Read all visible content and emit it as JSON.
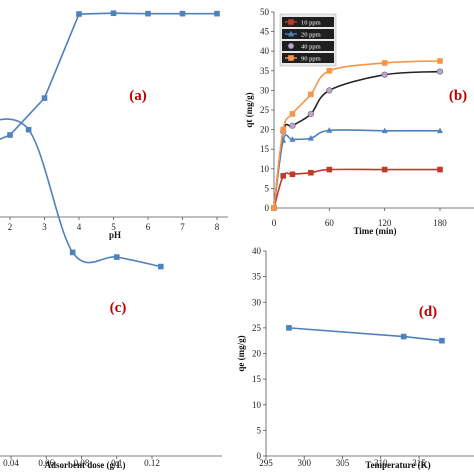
{
  "chart_data": [
    {
      "id": "a",
      "type": "line",
      "panel_label": "(a)",
      "xlabel": "pH",
      "ylabel": "",
      "x_ticks": [
        "2",
        "3",
        "4",
        "5",
        "6",
        "7",
        "8"
      ],
      "xlim": [
        1,
        8
      ],
      "ylim": [
        0,
        100
      ],
      "series": [
        {
          "name": "",
          "color": "#4f81bd",
          "x": [
            1.0,
            2,
            3,
            4,
            5,
            6,
            7,
            8
          ],
          "y": [
            33,
            40,
            58,
            99,
            99.4,
            99.2,
            99.2,
            99.2
          ]
        }
      ]
    },
    {
      "id": "b",
      "type": "line",
      "panel_label": "(b)",
      "xlabel": "Time (min)",
      "ylabel": "qt (mg/g)",
      "x_ticks": [
        "0",
        "60",
        "120",
        "180"
      ],
      "y_ticks": [
        "0",
        "5",
        "10",
        "15",
        "20",
        "25",
        "30",
        "35",
        "40",
        "45",
        "50"
      ],
      "xlim": [
        0,
        230
      ],
      "ylim": [
        0,
        50
      ],
      "legend_position": "top-left",
      "series": [
        {
          "name": "10 ppm",
          "color": "#c0392b",
          "marker": "square",
          "x": [
            0,
            10,
            20,
            40,
            60,
            120,
            180
          ],
          "y": [
            0,
            8.2,
            8.6,
            9.0,
            9.8,
            9.8,
            9.8
          ]
        },
        {
          "name": "20 ppm",
          "color": "#4f81bd",
          "marker": "triangle",
          "x": [
            0,
            10,
            20,
            40,
            60,
            120,
            180
          ],
          "y": [
            0,
            17.3,
            17.5,
            17.8,
            19.8,
            19.7,
            19.7
          ]
        },
        {
          "name": "40 ppm",
          "color": "#222222",
          "marker": "circle",
          "x": [
            0,
            10,
            20,
            40,
            60,
            120,
            180
          ],
          "y": [
            0,
            19.5,
            21,
            24,
            30,
            34,
            34.8
          ]
        },
        {
          "name": "90 ppm",
          "color": "#f79646",
          "marker": "square",
          "x": [
            0,
            10,
            20,
            40,
            60,
            120,
            180
          ],
          "y": [
            0,
            20,
            24,
            29,
            35,
            37,
            37.5
          ]
        }
      ]
    },
    {
      "id": "c",
      "type": "line",
      "panel_label": "(c)",
      "xlabel": "Adsorbent dose (g/L)",
      "ylabel": "",
      "x_ticks": [
        "0.04",
        "0.06",
        "0.08",
        "0.1",
        "0.12"
      ],
      "xlim": [
        0.02,
        0.13
      ],
      "ylim": [
        0,
        100
      ],
      "series": [
        {
          "name": "",
          "color": "#4f81bd",
          "x": [
            0.02,
            0.05,
            0.075,
            0.1,
            0.125
          ],
          "y": [
            82,
            81,
            55,
            54,
            52
          ]
        }
      ]
    },
    {
      "id": "d",
      "type": "line",
      "panel_label": "(d)",
      "xlabel": "Temperature (K)",
      "ylabel": "qe (mg/g)",
      "x_ticks": [
        "295",
        "300",
        "305",
        "310",
        "315"
      ],
      "y_ticks": [
        "0",
        "5",
        "10",
        "15",
        "20",
        "25",
        "30",
        "35",
        "40"
      ],
      "xlim": [
        295,
        318
      ],
      "ylim": [
        0,
        40
      ],
      "series": [
        {
          "name": "",
          "color": "#4f81bd",
          "x": [
            298,
            313,
            318
          ],
          "y": [
            25,
            23.3,
            22.5
          ]
        }
      ]
    }
  ]
}
